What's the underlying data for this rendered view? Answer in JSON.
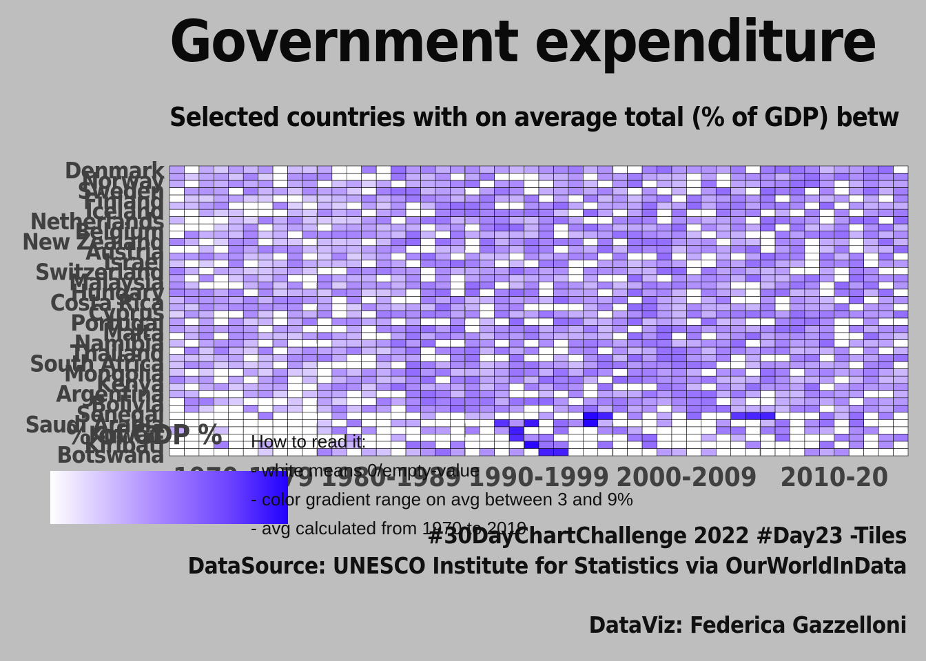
{
  "title": "Government expenditure",
  "subtitle": "Selected countries with on average total (% of GDP) betw",
  "legend": {
    "title": "% of GDP %",
    "colors": [
      "#ffffff",
      "#aa88ff",
      "#6e44ff",
      "#2200ff"
    ],
    "range": [
      3,
      9
    ]
  },
  "how_to_read": {
    "heading": "How to read it:",
    "lines": [
      "- white means 0/empty-value",
      "- color gradient range on avg between 3 and 9%",
      "- avg calculated from 1970 to 2019"
    ]
  },
  "credits": {
    "challenge": "#30DayChartChallenge 2022 #Day23 -Tiles",
    "source": "DataSource: UNESCO Institute for Statistics via OurWorldInData",
    "author": "DataViz: Federica Gazzelloni"
  },
  "chart_data": {
    "type": "heatmap",
    "x_labels": [
      "1970-1979",
      "1980-1989",
      "1990-1999",
      "2000-2009",
      "2010-20"
    ],
    "years": [
      1970,
      2019
    ],
    "y_labels": [
      "Denmark",
      "Norway",
      "Sweden",
      "Finland",
      "Iceland",
      "Netherlands",
      "Belgium",
      "New Zealand",
      "Austria",
      "Israel",
      "Switzerland",
      "Malaysia",
      "Hungary",
      "Costa Rica",
      "Cyprus",
      "Portugal",
      "Malta",
      "Namibia",
      "Thailand",
      "South Africa",
      "Mongolia",
      "Kenya",
      "Argentina",
      "Bolivia",
      "Senegal",
      "Saudi Arabia",
      "Kuwait",
      "Kiribati",
      "Botswana"
    ],
    "color_scale": {
      "min": 3,
      "max": 9,
      "empty": 0,
      "empty_color": "#ffffff"
    }
  }
}
